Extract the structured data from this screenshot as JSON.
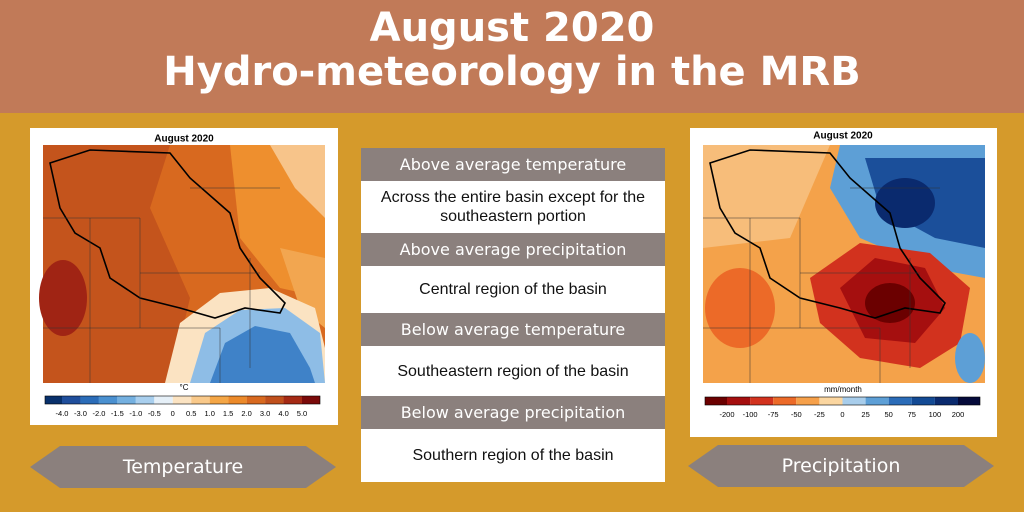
{
  "header": {
    "title_line1": "August 2020",
    "title_line2": "Hydro-meteorology in the MRB"
  },
  "temperature_map": {
    "title": "August 2020",
    "unit": "°C",
    "label": "Temperature",
    "colorbar_labels": [
      "-4.0",
      "-3.0",
      "-2.0",
      "-1.5",
      "-1.0",
      "-0.5",
      "0",
      "0.5",
      "1.0",
      "1.5",
      "2.0",
      "3.0",
      "4.0",
      "5.0"
    ],
    "colorbar_colors": [
      "#08306b",
      "#1f4e9c",
      "#2b6cb8",
      "#4a90d0",
      "#74b0e0",
      "#a9cfee",
      "#e6f0f8",
      "#fbe3c2",
      "#f9c98a",
      "#f4a646",
      "#ec8a2a",
      "#d8691f",
      "#c0501c",
      "#a52a15",
      "#7a0a0a"
    ]
  },
  "precipitation_map": {
    "title": "August 2020",
    "unit": "mm/month",
    "label": "Precipitation",
    "colorbar_labels": [
      "-200",
      "-100",
      "-75",
      "-50",
      "-25",
      "0",
      "25",
      "50",
      "75",
      "100",
      "200"
    ],
    "colorbar_colors": [
      "#6b0000",
      "#a50f0f",
      "#d2321e",
      "#ec6a28",
      "#f6a04a",
      "#fbd6a0",
      "#a8cdeb",
      "#5d9fd6",
      "#2b6cb8",
      "#134a94",
      "#0a2a6e",
      "#050a3a"
    ]
  },
  "summary": [
    {
      "heading": "Above average temperature",
      "text": "Across the entire basin except for the southeastern portion"
    },
    {
      "heading": "Above average precipitation",
      "text": "Central region of the basin"
    },
    {
      "heading": "Below average temperature",
      "text": "Southeastern region of the basin"
    },
    {
      "heading": "Below average precipitation",
      "text": "Southern region of the basin"
    }
  ]
}
